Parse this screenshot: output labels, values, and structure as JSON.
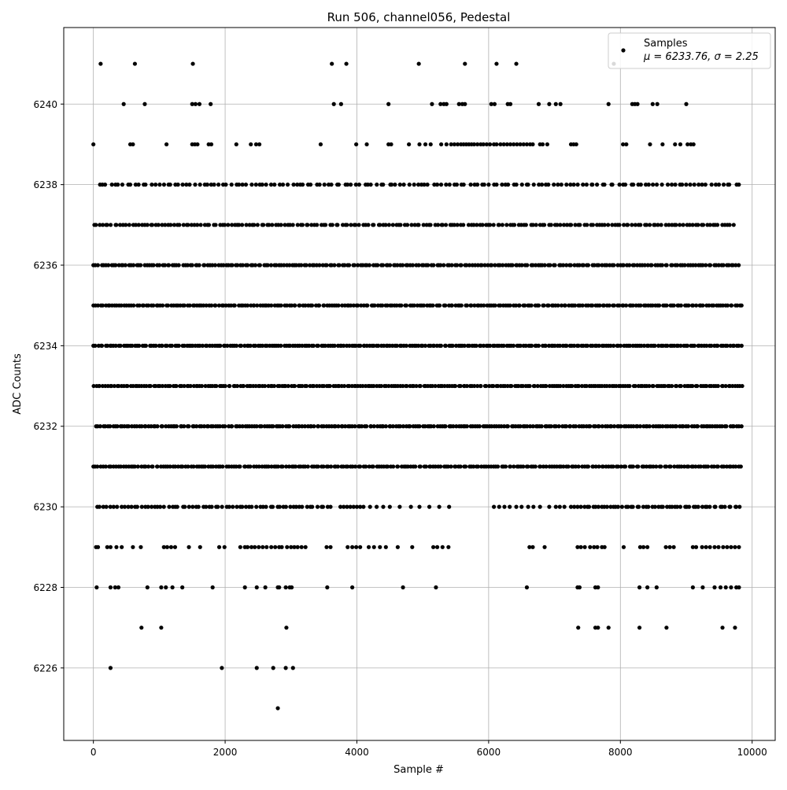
{
  "chart_data": {
    "type": "scatter",
    "title": "Run 506, channel056, Pedestal",
    "xlabel": "Sample #",
    "ylabel": "ADC Counts",
    "xlim": [
      -450,
      10350
    ],
    "ylim": [
      6224.2,
      6241.9
    ],
    "x_ticks": [
      0,
      2000,
      4000,
      6000,
      8000,
      10000
    ],
    "x_tick_labels": [
      "0",
      "2000",
      "4000",
      "6000",
      "8000",
      "10000"
    ],
    "y_ticks": [
      6226,
      6228,
      6230,
      6232,
      6234,
      6236,
      6238,
      6240
    ],
    "y_tick_labels": [
      "6226",
      "6228",
      "6230",
      "6232",
      "6234",
      "6236",
      "6238",
      "6240"
    ],
    "grid": true,
    "legend": {
      "position": "top-right",
      "series_label": "Samples",
      "stats_label": "μ = 6233.76, σ = 2.25"
    },
    "marker_color": "#000000",
    "series": [
      {
        "name": "Samples",
        "levels": [
          {
            "y": 6225,
            "x": [
              2800
            ]
          },
          {
            "y": 6226,
            "x": [
              260,
              1950,
              2480,
              2730,
              2920,
              3030
            ]
          },
          {
            "y": 6227,
            "x": [
              730,
              1030,
              2930,
              7360,
              7620,
              7660,
              7820,
              8290,
              8700,
              9550,
              9740
            ]
          },
          {
            "y": 6228,
            "x": [
              50,
              260,
              330,
              380,
              820,
              1030,
              1100,
              1200,
              1350,
              1810,
              2300,
              2480,
              2610,
              2800,
              2820,
              2920,
              2980,
              3010,
              3550,
              3930,
              4700,
              5200,
              6580,
              7350,
              7380,
              7620,
              7660,
              8290,
              8410,
              8550,
              9100,
              9250,
              9430,
              9520,
              9600,
              9680,
              9760,
              9800
            ]
          },
          {
            "y": 6229,
            "x": [
              40,
              70,
              210,
              260,
              350,
              430,
              600,
              720,
              1070,
              1120,
              1180,
              1240,
              1450,
              1620,
              1910,
              1990,
              2230,
              2300,
              2340,
              2400,
              2450,
              2510,
              2570,
              2630,
              2700,
              2760,
              2820,
              2860,
              2940,
              3000,
              3050,
              3100,
              3160,
              3220,
              3540,
              3600,
              3860,
              3930,
              3990,
              4050,
              4180,
              4260,
              4350,
              4440,
              4620,
              4840,
              5160,
              5220,
              5300,
              5390,
              6620,
              6670,
              6850,
              7350,
              7400,
              7460,
              7540,
              7600,
              7650,
              7720,
              7760,
              8050,
              8300,
              8350,
              8410,
              8690,
              8750,
              8810,
              9100,
              9150,
              9240,
              9300,
              9360,
              9430,
              9490,
              9560,
              9620,
              9680,
              9740,
              9800
            ]
          },
          {
            "y": 6230,
            "range": [
              60,
              3600
            ],
            "count": 70,
            "extra": [
              3750,
              3800,
              3850,
              3900,
              3950,
              4000,
              4050,
              4100,
              4200,
              4300,
              4400,
              4500,
              4650,
              4820,
              4950,
              5100,
              5250,
              5400,
              6080,
              6160,
              6240,
              6320,
              6420,
              6500,
              6600,
              6680,
              6780,
              6920,
              7020,
              7080,
              7150,
              7250,
              7300,
              7350
            ],
            "range2": [
              7400,
              9820
            ],
            "count2": 55
          },
          {
            "y": 6231,
            "range": [
              0,
              9840
            ],
            "count": 260
          },
          {
            "y": 6232,
            "range": [
              40,
              9840
            ],
            "count": 270
          },
          {
            "y": 6233,
            "range": [
              0,
              9850
            ],
            "count": 280
          },
          {
            "y": 6234,
            "range": [
              0,
              9840
            ],
            "count": 280
          },
          {
            "y": 6235,
            "range": [
              0,
              9850
            ],
            "count": 270
          },
          {
            "y": 6236,
            "range": [
              0,
              9800
            ],
            "count": 255
          },
          {
            "y": 6237,
            "range": [
              0,
              9720
            ],
            "count": 215
          },
          {
            "y": 6238,
            "range": [
              80,
              9800
            ],
            "count": 160
          },
          {
            "y": 6239,
            "x": [
              0,
              560,
              600,
              1110,
              1500,
              1540,
              1580,
              1750,
              1790,
              2170,
              2390,
              2470,
              2520,
              3450,
              3990,
              4150,
              4480,
              4520,
              4790,
              4950,
              5040,
              5120,
              5280,
              5360,
              5430,
              5480,
              5530,
              5580,
              5620,
              5660,
              5700,
              5740,
              5780,
              5830,
              5880,
              5920,
              5970,
              6020,
              6080,
              6120,
              6180,
              6230,
              6280,
              6330,
              6380,
              6430,
              6480,
              6530,
              6580,
              6630,
              6670,
              6780,
              6820,
              6890,
              7250,
              7290,
              7330,
              8040,
              8090,
              8450,
              8640,
              8830,
              8910,
              9020,
              9070,
              9110
            ]
          },
          {
            "y": 6240,
            "x": [
              460,
              780,
              1500,
              1550,
              1610,
              1780,
              3650,
              3760,
              4480,
              5140,
              5270,
              5320,
              5360,
              5550,
              5600,
              5640,
              6040,
              6090,
              6290,
              6330,
              6760,
              6920,
              7020,
              7090,
              7820,
              8180,
              8220,
              8260,
              8490,
              8560,
              9000
            ]
          },
          {
            "y": 6241,
            "x": [
              110,
              630,
              1510,
              3620,
              3840,
              4940,
              5640,
              6120,
              6420,
              7900
            ]
          }
        ]
      }
    ]
  }
}
